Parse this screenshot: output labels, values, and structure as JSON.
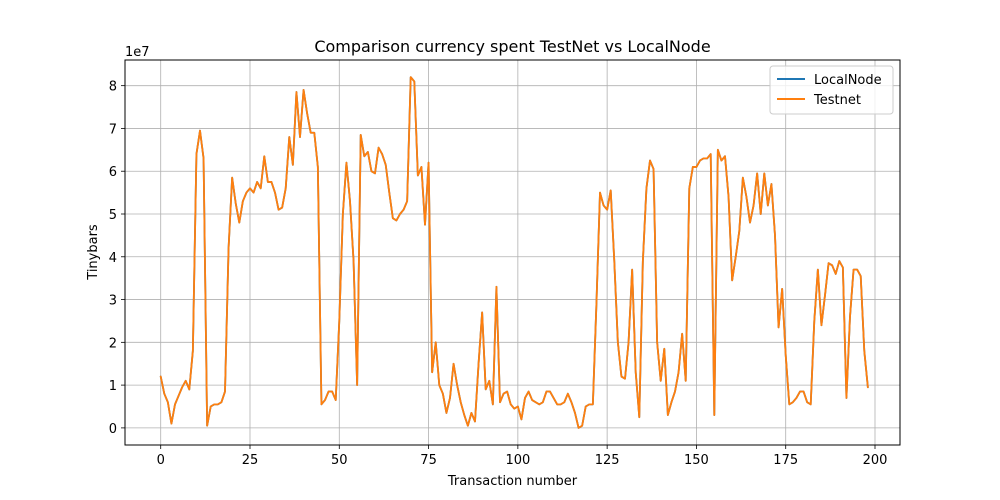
{
  "chart_data": {
    "type": "line",
    "title": "Comparison currency spent TestNet vs LocalNode",
    "xlabel": "Transaction number",
    "ylabel": "Tinybars",
    "y_offset_label": "1e7",
    "xlim": [
      -10,
      207
    ],
    "ylim": [
      -0.4,
      8.6
    ],
    "x_ticks": [
      0,
      25,
      50,
      75,
      100,
      125,
      150,
      175,
      200
    ],
    "x_tick_labels": [
      "0",
      "25",
      "50",
      "75",
      "100",
      "125",
      "150",
      "175",
      "200"
    ],
    "y_ticks": [
      0,
      1,
      2,
      3,
      4,
      5,
      6,
      7,
      8
    ],
    "y_tick_labels": [
      "0",
      "1",
      "2",
      "3",
      "4",
      "5",
      "6",
      "7",
      "8"
    ],
    "grid": true,
    "legend_position": "top-right",
    "series": [
      {
        "name": "LocalNode",
        "color": "#1f77b4",
        "values": [
          1.2,
          0.8,
          0.6,
          0.1,
          0.55,
          0.75,
          0.95,
          1.1,
          0.9,
          1.8,
          6.4,
          6.95,
          6.3,
          0.05,
          0.5,
          0.55,
          0.55,
          0.6,
          0.85,
          4.2,
          5.85,
          5.25,
          4.8,
          5.3,
          5.5,
          5.6,
          5.5,
          5.75,
          5.6,
          6.35,
          5.75,
          5.75,
          5.5,
          5.1,
          5.15,
          5.6,
          6.8,
          6.15,
          7.85,
          6.8,
          7.9,
          7.35,
          6.9,
          6.9,
          6.1,
          0.55,
          0.65,
          0.85,
          0.85,
          0.65,
          2.5,
          5.0,
          6.2,
          5.3,
          3.9,
          1.0,
          6.85,
          6.35,
          6.45,
          6.0,
          5.95,
          6.55,
          6.4,
          6.15,
          5.5,
          4.9,
          4.85,
          5.0,
          5.1,
          5.3,
          8.2,
          8.1,
          5.9,
          6.1,
          4.75,
          6.2,
          1.3,
          2.0,
          1.0,
          0.8,
          0.35,
          0.7,
          1.5,
          1.0,
          0.6,
          0.3,
          0.05,
          0.35,
          0.15,
          1.5,
          2.7,
          0.9,
          1.1,
          0.55,
          3.3,
          0.6,
          0.8,
          0.85,
          0.55,
          0.45,
          0.5,
          0.2,
          0.7,
          0.85,
          0.65,
          0.6,
          0.55,
          0.6,
          0.85,
          0.85,
          0.7,
          0.55,
          0.55,
          0.6,
          0.8,
          0.6,
          0.35,
          0.0,
          0.05,
          0.5,
          0.55,
          0.55,
          2.9,
          5.5,
          5.2,
          5.1,
          5.55,
          3.9,
          2.0,
          1.2,
          1.15,
          2.0,
          3.7,
          1.3,
          0.25,
          3.9,
          5.6,
          6.25,
          6.05,
          2.0,
          1.1,
          1.85,
          0.3,
          0.6,
          0.85,
          1.3,
          2.2,
          1.1,
          5.6,
          6.1,
          6.1,
          6.25,
          6.3,
          6.3,
          6.4,
          0.3,
          6.5,
          6.25,
          6.35,
          5.4,
          3.45,
          4.0,
          4.6,
          5.85,
          5.4,
          4.8,
          5.2,
          5.95,
          5.0,
          5.95,
          5.2,
          5.7,
          4.5,
          2.35,
          3.25,
          1.7,
          0.55,
          0.6,
          0.7,
          0.85,
          0.85,
          0.6,
          0.55,
          2.5,
          3.7,
          2.4,
          3.1,
          3.85,
          3.8,
          3.6,
          3.9,
          3.75,
          0.7,
          2.6,
          3.7,
          3.7,
          3.55,
          1.8,
          0.95
        ]
      },
      {
        "name": "Testnet",
        "color": "#ff7f0e",
        "values": [
          1.2,
          0.8,
          0.6,
          0.1,
          0.55,
          0.75,
          0.95,
          1.1,
          0.9,
          1.8,
          6.4,
          6.95,
          6.3,
          0.05,
          0.5,
          0.55,
          0.55,
          0.6,
          0.85,
          4.2,
          5.85,
          5.25,
          4.8,
          5.3,
          5.5,
          5.6,
          5.5,
          5.75,
          5.6,
          6.35,
          5.75,
          5.75,
          5.5,
          5.1,
          5.15,
          5.6,
          6.8,
          6.15,
          7.85,
          6.8,
          7.9,
          7.35,
          6.9,
          6.9,
          6.1,
          0.55,
          0.65,
          0.85,
          0.85,
          0.65,
          2.5,
          5.0,
          6.2,
          5.3,
          3.9,
          1.0,
          6.85,
          6.35,
          6.45,
          6.0,
          5.95,
          6.55,
          6.4,
          6.15,
          5.5,
          4.9,
          4.85,
          5.0,
          5.1,
          5.3,
          8.2,
          8.1,
          5.9,
          6.1,
          4.75,
          6.2,
          1.3,
          2.0,
          1.0,
          0.8,
          0.35,
          0.7,
          1.5,
          1.0,
          0.6,
          0.3,
          0.05,
          0.35,
          0.15,
          1.5,
          2.7,
          0.9,
          1.1,
          0.55,
          3.3,
          0.6,
          0.8,
          0.85,
          0.55,
          0.45,
          0.5,
          0.2,
          0.7,
          0.85,
          0.65,
          0.6,
          0.55,
          0.6,
          0.85,
          0.85,
          0.7,
          0.55,
          0.55,
          0.6,
          0.8,
          0.6,
          0.35,
          0.0,
          0.05,
          0.5,
          0.55,
          0.55,
          2.9,
          5.5,
          5.2,
          5.1,
          5.55,
          3.9,
          2.0,
          1.2,
          1.15,
          2.0,
          3.7,
          1.3,
          0.25,
          3.9,
          5.6,
          6.25,
          6.05,
          2.0,
          1.1,
          1.85,
          0.3,
          0.6,
          0.85,
          1.3,
          2.2,
          1.1,
          5.6,
          6.1,
          6.1,
          6.25,
          6.3,
          6.3,
          6.4,
          0.3,
          6.5,
          6.25,
          6.35,
          5.4,
          3.45,
          4.0,
          4.6,
          5.85,
          5.4,
          4.8,
          5.2,
          5.95,
          5.0,
          5.95,
          5.2,
          5.7,
          4.5,
          2.35,
          3.25,
          1.7,
          0.55,
          0.6,
          0.7,
          0.85,
          0.85,
          0.6,
          0.55,
          2.5,
          3.7,
          2.4,
          3.1,
          3.85,
          3.8,
          3.6,
          3.9,
          3.75,
          0.7,
          2.6,
          3.7,
          3.7,
          3.55,
          1.8,
          0.95
        ]
      }
    ]
  }
}
